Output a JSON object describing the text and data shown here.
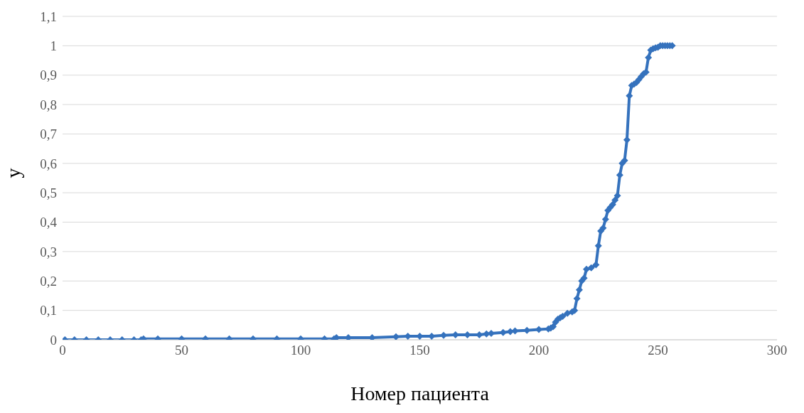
{
  "chart_data": {
    "type": "line",
    "xlabel": "Номер пациента",
    "ylabel": "y",
    "xlim": [
      0,
      300
    ],
    "xticks": [
      0,
      50,
      100,
      150,
      200,
      250,
      300
    ],
    "ylim": [
      0,
      1.1
    ],
    "yticks": [
      0,
      {
        "value": 0.1,
        "label": "0,1"
      },
      {
        "value": 0.2,
        "label": "0,2"
      },
      {
        "value": 0.3,
        "label": "0,3"
      },
      {
        "value": 0.4,
        "label": "0,4"
      },
      {
        "value": 0.5,
        "label": "0,5"
      },
      {
        "value": 0.6,
        "label": "0,6"
      },
      {
        "value": 0.7,
        "label": "0,7"
      },
      {
        "value": 0.8,
        "label": "0,8"
      },
      {
        "value": 0.9,
        "label": "0,9"
      },
      1,
      {
        "value": 1.1,
        "label": "1,1"
      }
    ],
    "grid": "y",
    "marker": "diamond",
    "line_style": "solid",
    "legend": false,
    "series": [
      {
        "color": "#3572bd",
        "x": [
          1,
          5,
          10,
          15,
          20,
          25,
          30,
          33,
          34,
          40,
          50,
          60,
          70,
          80,
          90,
          100,
          110,
          114,
          115,
          120,
          130,
          140,
          145,
          150,
          155,
          160,
          165,
          170,
          175,
          178,
          180,
          185,
          188,
          190,
          195,
          200,
          204,
          205,
          206,
          207,
          208,
          209,
          210,
          212,
          214,
          215,
          216,
          217,
          218,
          219,
          220,
          222,
          224,
          225,
          226,
          227,
          228,
          229,
          230,
          231,
          232,
          233,
          234,
          235,
          236,
          237,
          238,
          239,
          240,
          241,
          242,
          243,
          244,
          245,
          246,
          247,
          248,
          249,
          250,
          251,
          252,
          253,
          254,
          255,
          256
        ],
        "values": [
          0,
          0,
          0,
          0,
          0,
          0,
          0,
          0,
          0.003,
          0.003,
          0.003,
          0.003,
          0.003,
          0.003,
          0.003,
          0.003,
          0.003,
          0.003,
          0.007,
          0.007,
          0.007,
          0.01,
          0.012,
          0.012,
          0.012,
          0.015,
          0.017,
          0.017,
          0.017,
          0.02,
          0.022,
          0.025,
          0.028,
          0.03,
          0.032,
          0.035,
          0.037,
          0.04,
          0.045,
          0.06,
          0.07,
          0.075,
          0.08,
          0.09,
          0.095,
          0.1,
          0.14,
          0.17,
          0.2,
          0.21,
          0.24,
          0.245,
          0.255,
          0.32,
          0.37,
          0.38,
          0.41,
          0.44,
          0.45,
          0.46,
          0.475,
          0.49,
          0.56,
          0.6,
          0.61,
          0.68,
          0.83,
          0.865,
          0.87,
          0.875,
          0.885,
          0.895,
          0.905,
          0.91,
          0.96,
          0.985,
          0.99,
          0.993,
          0.995,
          1,
          1,
          1,
          1,
          1,
          1
        ]
      }
    ]
  }
}
